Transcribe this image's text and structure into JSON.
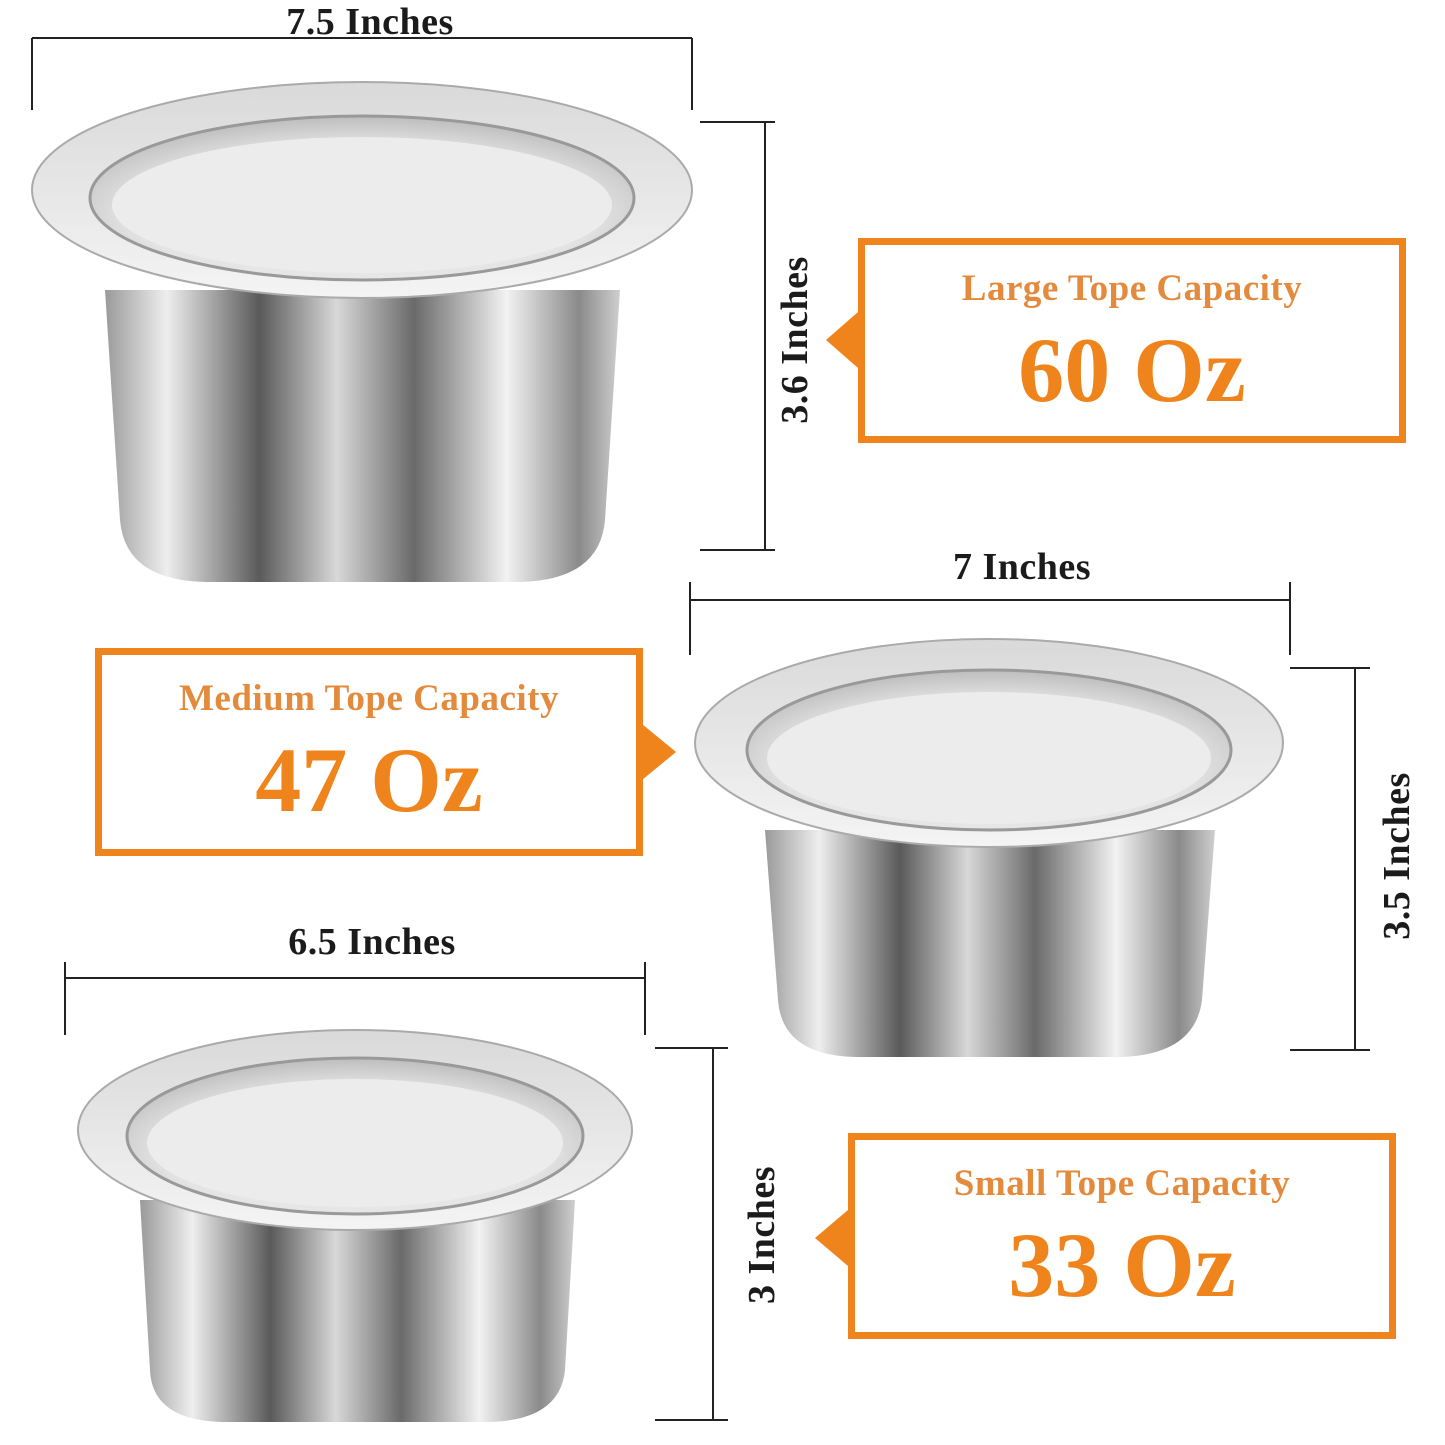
{
  "accent_color": "#f0841c",
  "large": {
    "width_label": "7.5 Inches",
    "height_label": "3.6 Inches",
    "capacity_title": "Large Tope Capacity",
    "capacity_value": "60 Oz"
  },
  "medium": {
    "width_label": "7 Inches",
    "height_label": "3.5 Inches",
    "capacity_title": "Medium Tope Capacity",
    "capacity_value": "47 Oz"
  },
  "small": {
    "width_label": "6.5 Inches",
    "height_label": "3 Inches",
    "capacity_title": "Small Tope Capacity",
    "capacity_value": "33 Oz"
  }
}
